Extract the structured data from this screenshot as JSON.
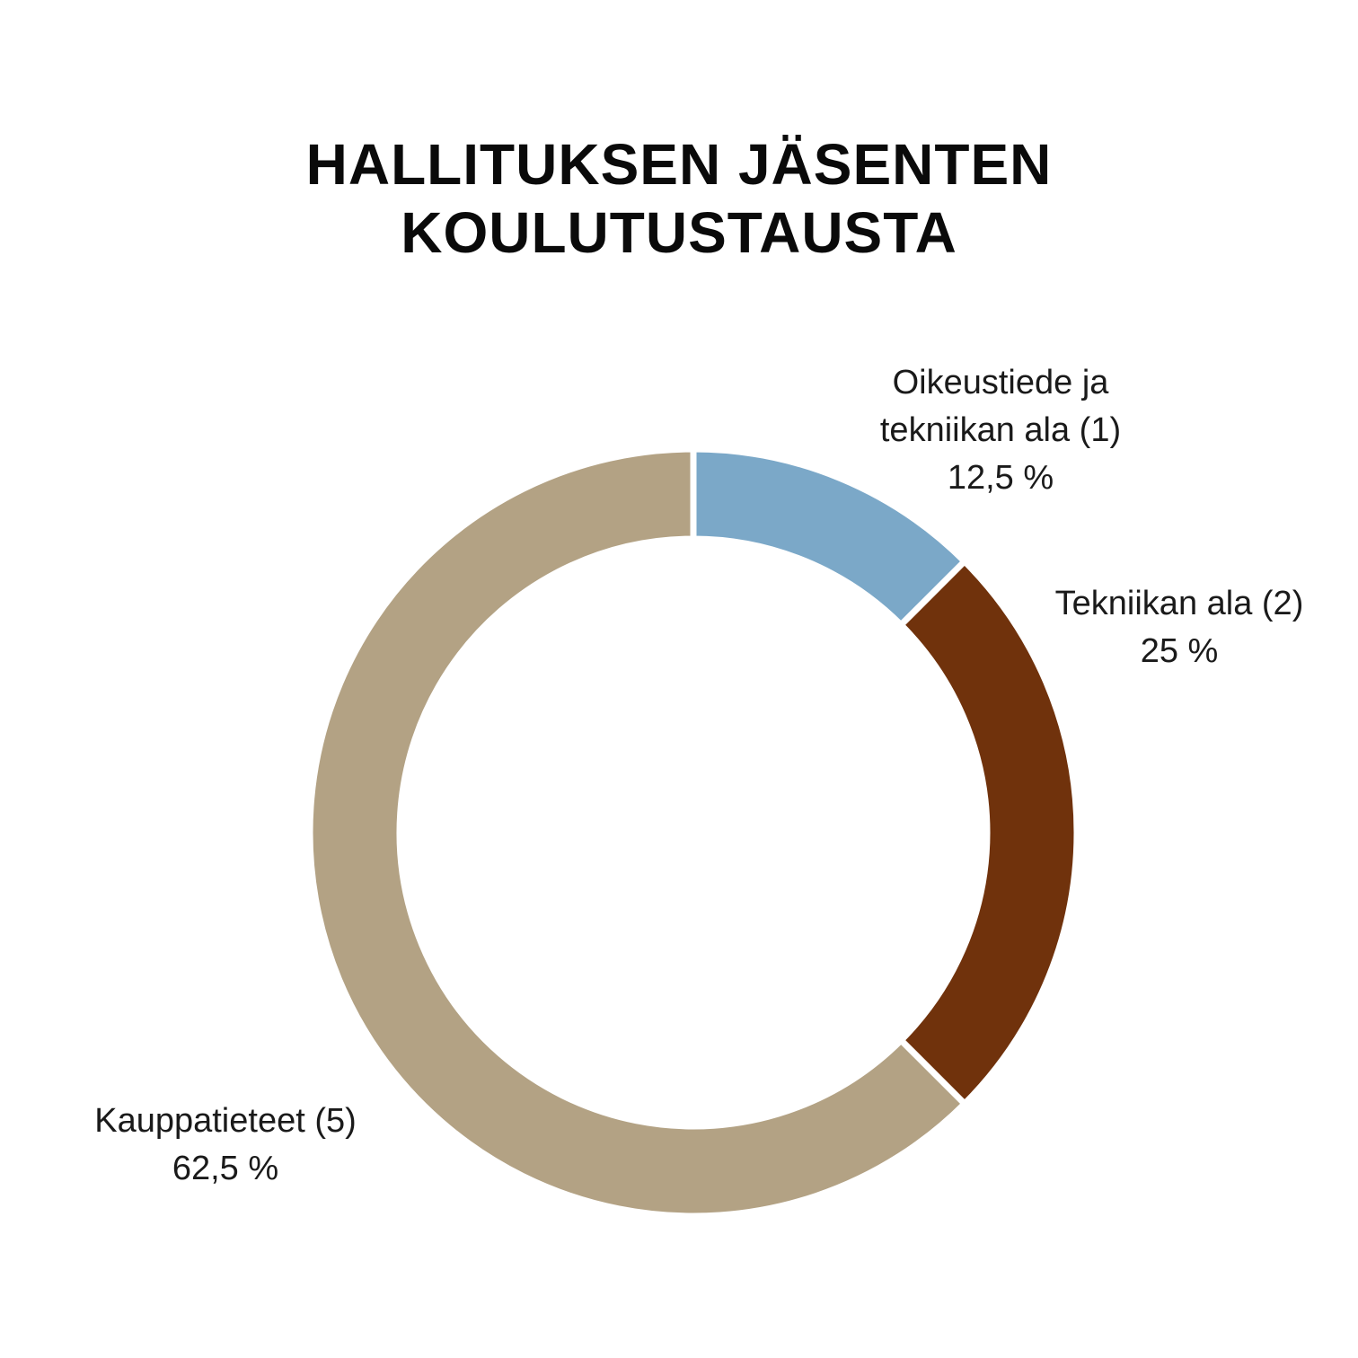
{
  "title_lines": [
    "HALLITUKSEN JÄSENTEN",
    "KOULUTUSTAUSTA"
  ],
  "chart_data": {
    "type": "pie",
    "donut": true,
    "title": "HALLITUKSEN JÄSENTEN KOULUTUSTAUSTA",
    "categories": [
      "Oikeustiede ja tekniikan ala",
      "Tekniikan ala",
      "Kauppatieteet"
    ],
    "counts": [
      1,
      2,
      5
    ],
    "values": [
      12.5,
      25,
      62.5
    ],
    "unit": "%",
    "colors": [
      "#7ba8c8",
      "#70320c",
      "#b3a284"
    ],
    "labels": [
      {
        "lines": [
          "Oikeustiede ja",
          "tekniikan ala (1)"
        ],
        "value_text": "12,5 %"
      },
      {
        "lines": [
          "Tekniikan ala (2)"
        ],
        "value_text": "25 %"
      },
      {
        "lines": [
          "Kauppatieteet (5)"
        ],
        "value_text": "62,5 %"
      }
    ]
  }
}
